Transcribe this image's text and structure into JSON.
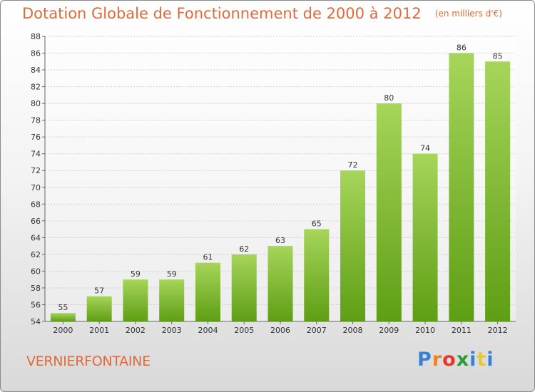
{
  "header": {
    "title": "Dotation Globale de Fonctionnement de 2000 à 2012",
    "subtitle": "(en milliers d'€)"
  },
  "footer": {
    "commune": "VERNIERFONTAINE",
    "logo_text": "Proxiti",
    "logo_colors": [
      "#3a7fd0",
      "#e8852a",
      "#e23a2a",
      "#2c9b3a",
      "#3a7fd0",
      "#e8c82a",
      "#3a7fd0"
    ]
  },
  "colors": {
    "bar_top": "#a6d55a",
    "bar_bottom": "#5e9e14",
    "text": "#333333",
    "accent": "#e06a3a"
  },
  "chart_data": {
    "type": "bar",
    "title": "Dotation Globale de Fonctionnement de 2000 à 2012",
    "subtitle": "(en milliers d'€)",
    "categories": [
      "2000",
      "2001",
      "2002",
      "2003",
      "2004",
      "2005",
      "2006",
      "2007",
      "2008",
      "2009",
      "2010",
      "2011",
      "2012"
    ],
    "values": [
      55,
      57,
      59,
      59,
      61,
      62,
      63,
      65,
      72,
      80,
      74,
      86,
      85
    ],
    "yticks": [
      54,
      56,
      58,
      60,
      62,
      64,
      66,
      68,
      70,
      72,
      74,
      76,
      78,
      80,
      82,
      84,
      86,
      88
    ],
    "ylim": [
      54,
      88
    ],
    "grid": true,
    "legend": "none"
  }
}
